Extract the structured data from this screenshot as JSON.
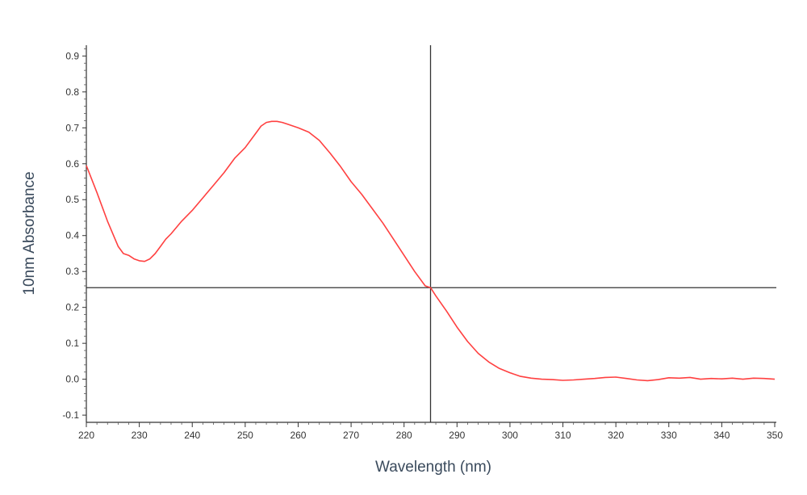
{
  "chart_data": {
    "type": "line",
    "xlabel": "Wavelength (nm)",
    "ylabel": "10nm Absorbance",
    "xlim": [
      220,
      350
    ],
    "ylim": [
      -0.12,
      0.93
    ],
    "x_ticks": [
      220,
      230,
      240,
      250,
      260,
      270,
      280,
      290,
      300,
      310,
      320,
      330,
      340,
      350
    ],
    "y_ticks": [
      -0.1,
      0.0,
      0.1,
      0.2,
      0.3,
      0.4,
      0.5,
      0.6,
      0.7,
      0.8,
      0.9
    ],
    "y_tick_labels": [
      "-0.1",
      "0.0",
      "0.1",
      "0.2",
      "0.3",
      "0.4",
      "0.5",
      "0.6",
      "0.7",
      "0.8",
      "0.9"
    ],
    "grid": false,
    "legend": false,
    "series": [
      {
        "color": "#ff4040",
        "x": [
          220,
          222,
          224,
          226,
          227,
          228,
          229,
          230,
          231,
          232,
          233,
          234,
          235,
          236,
          238,
          240,
          242,
          244,
          246,
          248,
          250,
          252,
          253,
          254,
          255,
          256,
          257,
          258,
          260,
          262,
          264,
          266,
          268,
          270,
          272,
          274,
          276,
          278,
          280,
          282,
          284,
          285,
          286,
          288,
          290,
          292,
          294,
          296,
          298,
          300,
          302,
          304,
          306,
          308,
          310,
          312,
          314,
          316,
          318,
          320,
          322,
          324,
          326,
          328,
          330,
          332,
          334,
          336,
          338,
          340,
          342,
          344,
          346,
          348,
          350
        ],
        "y": [
          0.595,
          0.52,
          0.44,
          0.37,
          0.35,
          0.345,
          0.335,
          0.33,
          0.328,
          0.335,
          0.35,
          0.37,
          0.39,
          0.405,
          0.44,
          0.47,
          0.505,
          0.54,
          0.575,
          0.615,
          0.645,
          0.685,
          0.705,
          0.715,
          0.718,
          0.718,
          0.715,
          0.71,
          0.7,
          0.688,
          0.665,
          0.63,
          0.592,
          0.55,
          0.515,
          0.475,
          0.435,
          0.39,
          0.345,
          0.3,
          0.26,
          0.255,
          0.232,
          0.19,
          0.145,
          0.105,
          0.072,
          0.048,
          0.03,
          0.018,
          0.008,
          0.003,
          0.0,
          -0.001,
          -0.003,
          -0.002,
          0.0,
          0.002,
          0.005,
          0.006,
          0.002,
          -0.002,
          -0.004,
          -0.001,
          0.004,
          0.003,
          0.005,
          0.0,
          0.002,
          0.001,
          0.003,
          0.0,
          0.003,
          0.002,
          0.0
        ]
      }
    ],
    "crosshair": {
      "x": 285,
      "y": 0.255,
      "color": "#333333"
    }
  }
}
